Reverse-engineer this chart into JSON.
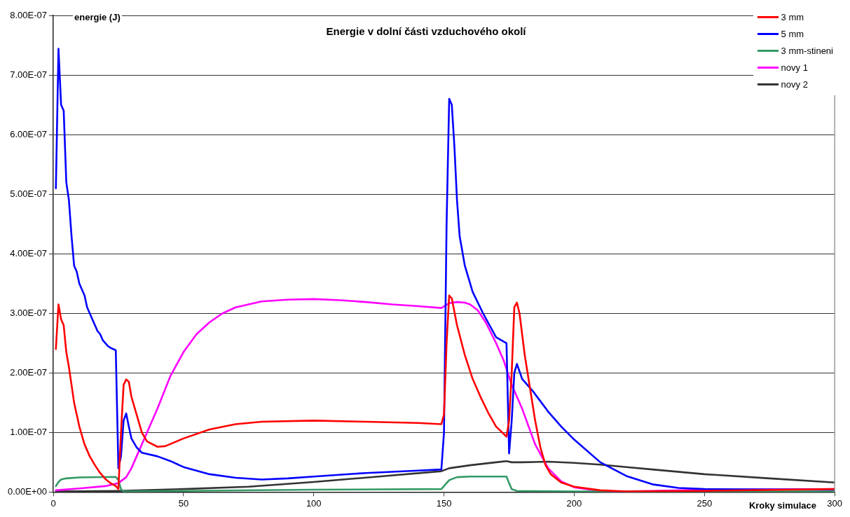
{
  "chart_data": {
    "type": "line",
    "title": "Energie v dolní části vzduchového okolí",
    "xlabel": "Kroky simulace",
    "ylabel": "energie (J)",
    "xlim": [
      0,
      300
    ],
    "xticks": [
      0,
      50,
      100,
      150,
      200,
      250,
      300
    ],
    "ylim": [
      0,
      8e-07
    ],
    "yticks": [
      {
        "value": 0,
        "label": "0.00E+00"
      },
      {
        "value": 1e-07,
        "label": "1.00E-07"
      },
      {
        "value": 2e-07,
        "label": "2.00E-07"
      },
      {
        "value": 3e-07,
        "label": "3.00E-07"
      },
      {
        "value": 4e-07,
        "label": "4.00E-07"
      },
      {
        "value": 5e-07,
        "label": "5.00E-07"
      },
      {
        "value": 6e-07,
        "label": "6.00E-07"
      },
      {
        "value": 7e-07,
        "label": "7.00E-07"
      },
      {
        "value": 8e-07,
        "label": "8.00E-07"
      }
    ],
    "grid": "y",
    "legend": "top right",
    "marker": "none",
    "line_style": "solid",
    "series": [
      {
        "name": "3 mm",
        "color": "#ff0000",
        "x": [
          1,
          2,
          3,
          4,
          5,
          6,
          7,
          8,
          9,
          10,
          12,
          14,
          16,
          18,
          20,
          22,
          24,
          25,
          26,
          27,
          28,
          29,
          30,
          32,
          34,
          36,
          40,
          43,
          50,
          60,
          70,
          80,
          100,
          120,
          140,
          149,
          150,
          151,
          152,
          153,
          155,
          158,
          161,
          164,
          167,
          170,
          174,
          175,
          176,
          177,
          178,
          179,
          181,
          183,
          185,
          187,
          189,
          191,
          195,
          200,
          210,
          220,
          250,
          300
        ],
        "values": [
          2.4e-07,
          3.15e-07,
          2.9e-07,
          2.8e-07,
          2.35e-07,
          2.1e-07,
          1.8e-07,
          1.5e-07,
          1.3e-07,
          1.1e-07,
          8e-08,
          6e-08,
          4.5e-08,
          3.2e-08,
          2.2e-08,
          1.5e-08,
          1e-08,
          5e-09,
          1e-07,
          1.8e-07,
          1.89e-07,
          1.85e-07,
          1.6e-07,
          1.3e-07,
          1e-07,
          8.5e-08,
          7.6e-08,
          7.7e-08,
          9e-08,
          1.05e-07,
          1.14e-07,
          1.18e-07,
          1.2e-07,
          1.18e-07,
          1.16e-07,
          1.14e-07,
          1.3e-07,
          2.5e-07,
          3.3e-07,
          3.25e-07,
          2.8e-07,
          2.3e-07,
          1.9e-07,
          1.6e-07,
          1.33e-07,
          1.1e-07,
          9.3e-08,
          1.2e-07,
          2e-07,
          3.1e-07,
          3.18e-07,
          3e-07,
          2.3e-07,
          1.75e-07,
          1.2e-07,
          7.5e-08,
          4.5e-08,
          3e-08,
          1.6e-08,
          9e-09,
          3e-09,
          1e-09,
          2e-09,
          5e-09
        ]
      },
      {
        "name": "5 mm",
        "color": "#0000ff",
        "x": [
          1,
          2,
          3,
          4,
          5,
          6,
          7,
          8,
          9,
          10,
          11,
          12,
          13,
          14,
          15,
          16,
          17,
          18,
          19,
          20,
          21,
          22,
          23,
          24,
          25,
          26,
          27,
          28,
          29,
          30,
          32,
          34,
          40,
          45,
          50,
          60,
          70,
          80,
          90,
          100,
          120,
          140,
          149,
          150,
          151,
          152,
          153,
          154,
          155,
          156,
          158,
          161,
          165,
          170,
          174,
          175,
          176,
          177,
          178,
          180,
          184,
          190,
          195,
          200,
          210,
          220,
          230,
          240,
          250,
          300
        ],
        "values": [
          5.1e-07,
          7.44e-07,
          6.5e-07,
          6.4e-07,
          5.2e-07,
          4.9e-07,
          4.3e-07,
          3.8e-07,
          3.7e-07,
          3.5e-07,
          3.4e-07,
          3.3e-07,
          3.1e-07,
          3e-07,
          2.9e-07,
          2.8e-07,
          2.7e-07,
          2.65e-07,
          2.55e-07,
          2.5e-07,
          2.45e-07,
          2.42e-07,
          2.4e-07,
          2.38e-07,
          4e-08,
          6e-08,
          1.2e-07,
          1.32e-07,
          1.1e-07,
          9e-08,
          7.5e-08,
          6.6e-08,
          6e-08,
          5.2e-08,
          4.2e-08,
          3e-08,
          2.4e-08,
          2.1e-08,
          2.3e-08,
          2.6e-08,
          3.2e-08,
          3.6e-08,
          3.8e-08,
          1e-07,
          4.5e-07,
          6.6e-07,
          6.5e-07,
          5.8e-07,
          4.9e-07,
          4.3e-07,
          3.8e-07,
          3.36e-07,
          3e-07,
          2.6e-07,
          2.5e-07,
          6.5e-08,
          1.2e-07,
          2e-07,
          2.15e-07,
          1.9e-07,
          1.7e-07,
          1.35e-07,
          1.1e-07,
          8.8e-08,
          5e-08,
          2.7e-08,
          1.3e-08,
          7e-09,
          5e-09,
          4e-09
        ]
      },
      {
        "name": "3 mm-stineni",
        "color": "#339966",
        "x": [
          1,
          2,
          3,
          5,
          10,
          24,
          25,
          26,
          27,
          50,
          100,
          149,
          150,
          152,
          155,
          160,
          174,
          175,
          176,
          178,
          200,
          300
        ],
        "values": [
          1e-08,
          1.7e-08,
          2.1e-08,
          2.3e-08,
          2.45e-08,
          2.55e-08,
          2e-08,
          5e-09,
          1e-09,
          2e-09,
          4e-09,
          5e-09,
          1e-08,
          2e-08,
          2.5e-08,
          2.6e-08,
          2.6e-08,
          1.5e-08,
          5e-09,
          2e-09,
          1e-09,
          1e-09
        ]
      },
      {
        "name": "novy 1",
        "color": "#ff00ff",
        "x": [
          1,
          10,
          20,
          25,
          28,
          30,
          33,
          36,
          40,
          45,
          50,
          55,
          60,
          65,
          70,
          80,
          90,
          100,
          110,
          120,
          130,
          140,
          149,
          152,
          155,
          158,
          160,
          163,
          166,
          170,
          173,
          176,
          180,
          185,
          190,
          195,
          200,
          210,
          215,
          230,
          250,
          300
        ],
        "values": [
          3e-09,
          6e-09,
          1e-08,
          1.5e-08,
          2.5e-08,
          4e-08,
          7e-08,
          1e-07,
          1.4e-07,
          1.95e-07,
          2.35e-07,
          2.65e-07,
          2.85e-07,
          3e-07,
          3.1e-07,
          3.2e-07,
          3.23e-07,
          3.24e-07,
          3.22e-07,
          3.19e-07,
          3.15e-07,
          3.12e-07,
          3.09e-07,
          3.17e-07,
          3.19e-07,
          3.18e-07,
          3.15e-07,
          3.05e-07,
          2.85e-07,
          2.5e-07,
          2.2e-07,
          1.8e-07,
          1.4e-07,
          8e-08,
          4e-08,
          1.8e-08,
          8e-09,
          2e-09,
          1e-09,
          2e-09,
          4e-09,
          5e-09
        ]
      },
      {
        "name": "novy 2",
        "color": "#333333",
        "x": [
          1,
          25,
          50,
          75,
          100,
          125,
          149,
          152,
          160,
          170,
          174,
          176,
          180,
          190,
          200,
          210,
          220,
          230,
          250,
          275,
          300
        ],
        "values": [
          1e-09,
          2e-09,
          5e-09,
          9e-09,
          1.7e-08,
          2.6e-08,
          3.5e-08,
          4e-08,
          4.5e-08,
          5e-08,
          5.2e-08,
          5e-08,
          5e-08,
          5.1e-08,
          4.9e-08,
          4.6e-08,
          4.2e-08,
          3.8e-08,
          3e-08,
          2.3e-08,
          1.6e-08
        ]
      }
    ]
  }
}
